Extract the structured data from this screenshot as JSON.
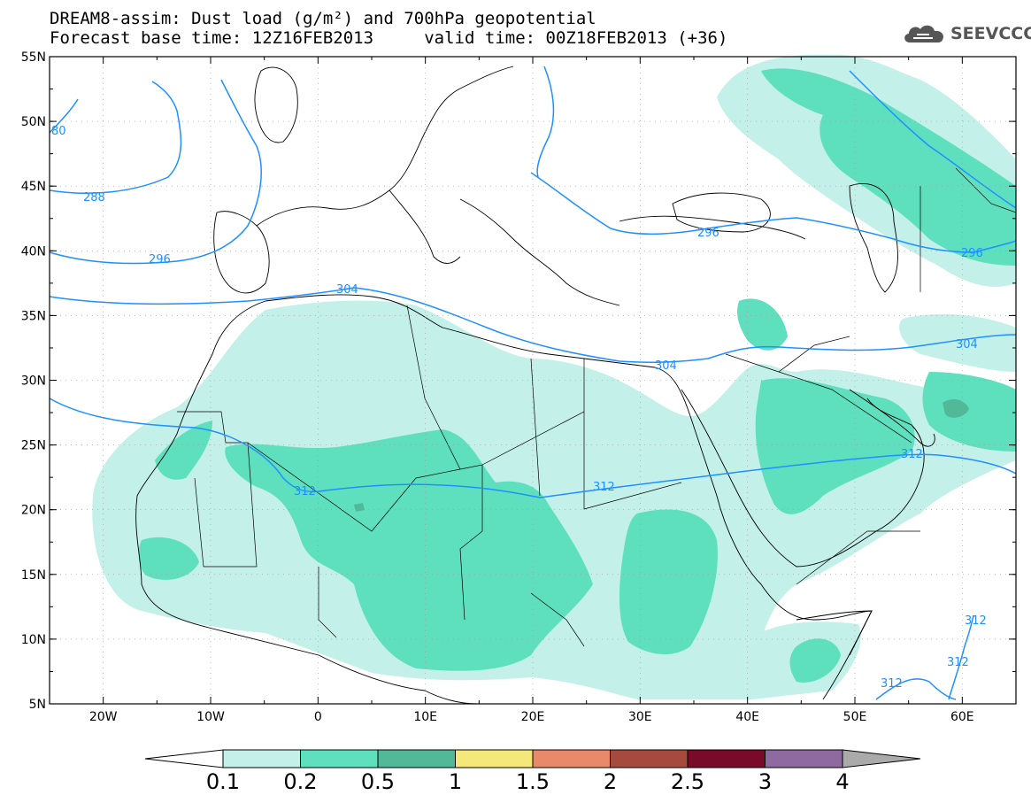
{
  "header": {
    "title_line1": "DREAM8-assim: Dust load (g/m²) and 700hPa geopotential",
    "title_line2": "Forecast base time: 12Z16FEB2013     valid time: 00Z18FEB2013 (+36)"
  },
  "logo": {
    "text": "SEEVCCC",
    "icon": "cloud-icon"
  },
  "axes": {
    "lat_labels": [
      "55N",
      "50N",
      "45N",
      "40N",
      "35N",
      "30N",
      "25N",
      "20N",
      "15N",
      "10N",
      "5N"
    ],
    "lon_labels": [
      "20W",
      "10W",
      "0",
      "10E",
      "20E",
      "30E",
      "40E",
      "50E",
      "60E"
    ]
  },
  "contours": {
    "labels": [
      "80",
      "288",
      "296",
      "304",
      "304",
      "312",
      "312",
      "296",
      "296",
      "304",
      "312",
      "312",
      "312",
      "312"
    ]
  },
  "colorbar": {
    "colors": [
      "#ffffff",
      "#c4f0ea",
      "#5ee0be",
      "#52b998",
      "#f5e87a",
      "#e8896a",
      "#a64a3e",
      "#7a0a2a",
      "#8e6aa0",
      "#aaaaaa"
    ],
    "labels": [
      "0.1",
      "0.2",
      "0.5",
      "1",
      "1.5",
      "2",
      "2.5",
      "3",
      "4"
    ]
  },
  "colors": {
    "dust_low": "#c4f0ea",
    "dust_mid": "#5ee0be",
    "dust_high": "#52b998",
    "contour": "#1e90ff",
    "coast": "#000000"
  }
}
